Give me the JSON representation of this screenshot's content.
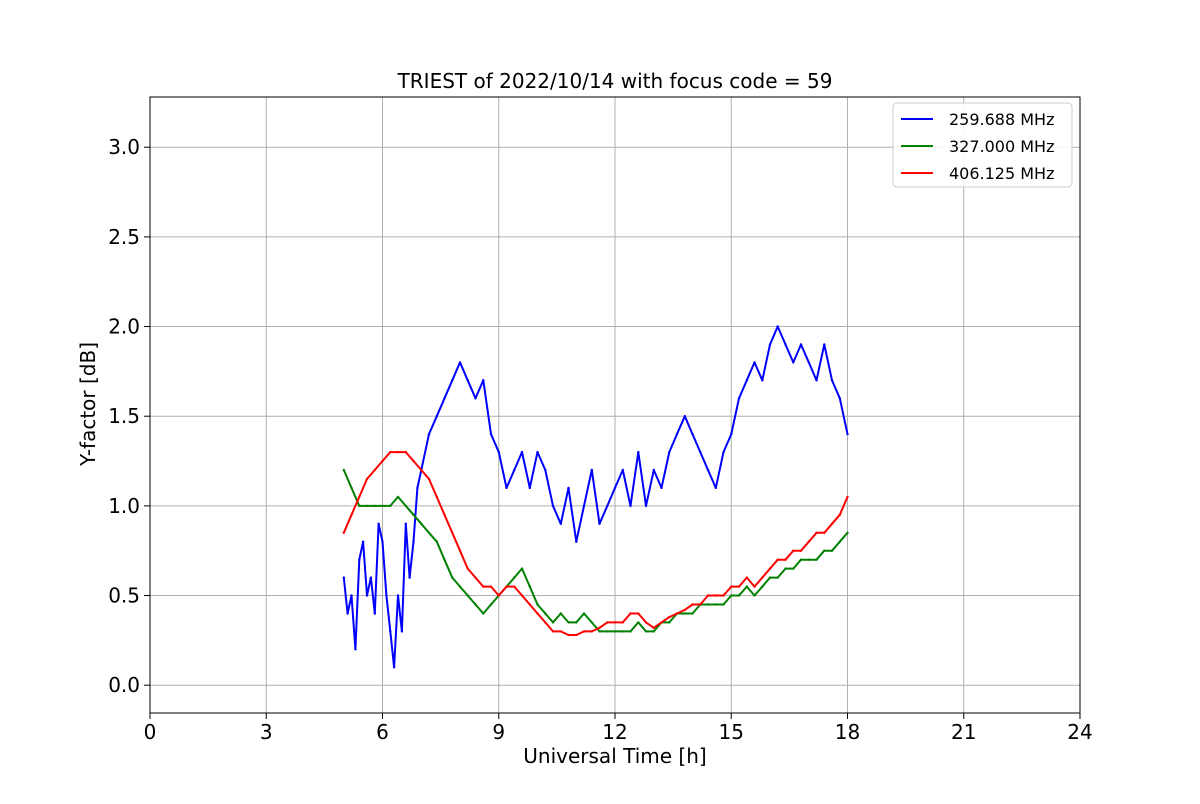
{
  "chart_data": {
    "type": "line",
    "title": "TRIEST of 2022/10/14 with focus code = 59",
    "xlabel": "Universal Time [h]",
    "ylabel": "Y-factor [dB]",
    "xlim": [
      0,
      24
    ],
    "ylim": [
      -0.155,
      3.28
    ],
    "xticks": [
      0,
      3,
      6,
      9,
      12,
      15,
      18,
      21,
      24
    ],
    "xtick_labels": [
      "0",
      "3",
      "6",
      "9",
      "12",
      "15",
      "18",
      "21",
      "24"
    ],
    "yticks": [
      0.0,
      0.5,
      1.0,
      1.5,
      2.0,
      2.5,
      3.0
    ],
    "ytick_labels": [
      "0.0",
      "0.5",
      "1.0",
      "1.5",
      "2.0",
      "2.5",
      "3.0"
    ],
    "grid": true,
    "legend_position": "top-right",
    "series": [
      {
        "name": "259.688 MHz",
        "color": "#0000ff",
        "x": [
          5.0,
          5.1,
          5.2,
          5.3,
          5.4,
          5.5,
          5.6,
          5.7,
          5.8,
          5.9,
          6.0,
          6.1,
          6.2,
          6.3,
          6.4,
          6.5,
          6.6,
          6.7,
          6.8,
          6.9,
          7.0,
          7.2,
          7.4,
          7.6,
          7.8,
          8.0,
          8.2,
          8.4,
          8.6,
          8.8,
          9.0,
          9.2,
          9.4,
          9.6,
          9.8,
          10.0,
          10.2,
          10.4,
          10.6,
          10.8,
          11.0,
          11.2,
          11.4,
          11.6,
          11.8,
          12.0,
          12.2,
          12.4,
          12.6,
          12.8,
          13.0,
          13.2,
          13.4,
          13.6,
          13.8,
          14.0,
          14.2,
          14.4,
          14.6,
          14.8,
          15.0,
          15.2,
          15.4,
          15.6,
          15.8,
          16.0,
          16.2,
          16.4,
          16.6,
          16.8,
          17.0,
          17.2,
          17.4,
          17.6,
          17.8,
          18.0
        ],
        "y": [
          0.6,
          0.4,
          0.5,
          0.2,
          0.7,
          0.8,
          0.5,
          0.6,
          0.4,
          0.9,
          0.8,
          0.5,
          0.3,
          0.1,
          0.5,
          0.3,
          0.9,
          0.6,
          0.8,
          1.1,
          1.2,
          1.4,
          1.5,
          1.6,
          1.7,
          1.8,
          1.7,
          1.6,
          1.7,
          1.4,
          1.3,
          1.1,
          1.2,
          1.3,
          1.1,
          1.3,
          1.2,
          1.0,
          0.9,
          1.1,
          0.8,
          1.0,
          1.2,
          0.9,
          1.0,
          1.1,
          1.2,
          1.0,
          1.3,
          1.0,
          1.2,
          1.1,
          1.3,
          1.4,
          1.5,
          1.4,
          1.3,
          1.2,
          1.1,
          1.3,
          1.4,
          1.6,
          1.7,
          1.8,
          1.7,
          1.9,
          2.0,
          1.9,
          1.8,
          1.9,
          1.8,
          1.7,
          1.9,
          1.7,
          1.6,
          1.4
        ]
      },
      {
        "name": "327.000 MHz",
        "color": "#008000",
        "x": [
          5.0,
          5.2,
          5.4,
          5.6,
          5.8,
          6.0,
          6.2,
          6.4,
          6.6,
          6.8,
          7.0,
          7.2,
          7.4,
          7.6,
          7.8,
          8.0,
          8.2,
          8.4,
          8.6,
          8.8,
          9.0,
          9.2,
          9.4,
          9.6,
          9.8,
          10.0,
          10.2,
          10.4,
          10.6,
          10.8,
          11.0,
          11.2,
          11.4,
          11.6,
          11.8,
          12.0,
          12.2,
          12.4,
          12.6,
          12.8,
          13.0,
          13.2,
          13.4,
          13.6,
          13.8,
          14.0,
          14.2,
          14.4,
          14.6,
          14.8,
          15.0,
          15.2,
          15.4,
          15.6,
          15.8,
          16.0,
          16.2,
          16.4,
          16.6,
          16.8,
          17.0,
          17.2,
          17.4,
          17.6,
          17.8,
          18.0
        ],
        "y": [
          1.2,
          1.1,
          1.0,
          1.0,
          1.0,
          1.0,
          1.0,
          1.05,
          1.0,
          0.95,
          0.9,
          0.85,
          0.8,
          0.7,
          0.6,
          0.55,
          0.5,
          0.45,
          0.4,
          0.45,
          0.5,
          0.55,
          0.6,
          0.65,
          0.55,
          0.45,
          0.4,
          0.35,
          0.4,
          0.35,
          0.35,
          0.4,
          0.35,
          0.3,
          0.3,
          0.3,
          0.3,
          0.3,
          0.35,
          0.3,
          0.3,
          0.35,
          0.35,
          0.4,
          0.4,
          0.4,
          0.45,
          0.45,
          0.45,
          0.45,
          0.5,
          0.5,
          0.55,
          0.5,
          0.55,
          0.6,
          0.6,
          0.65,
          0.65,
          0.7,
          0.7,
          0.7,
          0.75,
          0.75,
          0.8,
          0.85
        ]
      },
      {
        "name": "406.125 MHz",
        "color": "#ff0000",
        "x": [
          5.0,
          5.2,
          5.4,
          5.6,
          5.8,
          6.0,
          6.2,
          6.4,
          6.6,
          6.8,
          7.0,
          7.2,
          7.4,
          7.6,
          7.8,
          8.0,
          8.2,
          8.4,
          8.6,
          8.8,
          9.0,
          9.2,
          9.4,
          9.6,
          9.8,
          10.0,
          10.2,
          10.4,
          10.6,
          10.8,
          11.0,
          11.2,
          11.4,
          11.6,
          11.8,
          12.0,
          12.2,
          12.4,
          12.6,
          12.8,
          13.0,
          13.2,
          13.4,
          13.6,
          13.8,
          14.0,
          14.2,
          14.4,
          14.6,
          14.8,
          15.0,
          15.2,
          15.4,
          15.6,
          15.8,
          16.0,
          16.2,
          16.4,
          16.6,
          16.8,
          17.0,
          17.2,
          17.4,
          17.6,
          17.8,
          18.0
        ],
        "y": [
          0.85,
          0.95,
          1.05,
          1.15,
          1.2,
          1.25,
          1.3,
          1.3,
          1.3,
          1.25,
          1.2,
          1.15,
          1.05,
          0.95,
          0.85,
          0.75,
          0.65,
          0.6,
          0.55,
          0.55,
          0.5,
          0.55,
          0.55,
          0.5,
          0.45,
          0.4,
          0.35,
          0.3,
          0.3,
          0.28,
          0.28,
          0.3,
          0.3,
          0.32,
          0.35,
          0.35,
          0.35,
          0.4,
          0.4,
          0.35,
          0.32,
          0.35,
          0.38,
          0.4,
          0.42,
          0.45,
          0.45,
          0.5,
          0.5,
          0.5,
          0.55,
          0.55,
          0.6,
          0.55,
          0.6,
          0.65,
          0.7,
          0.7,
          0.75,
          0.75,
          0.8,
          0.85,
          0.85,
          0.9,
          0.95,
          1.05
        ]
      }
    ]
  }
}
